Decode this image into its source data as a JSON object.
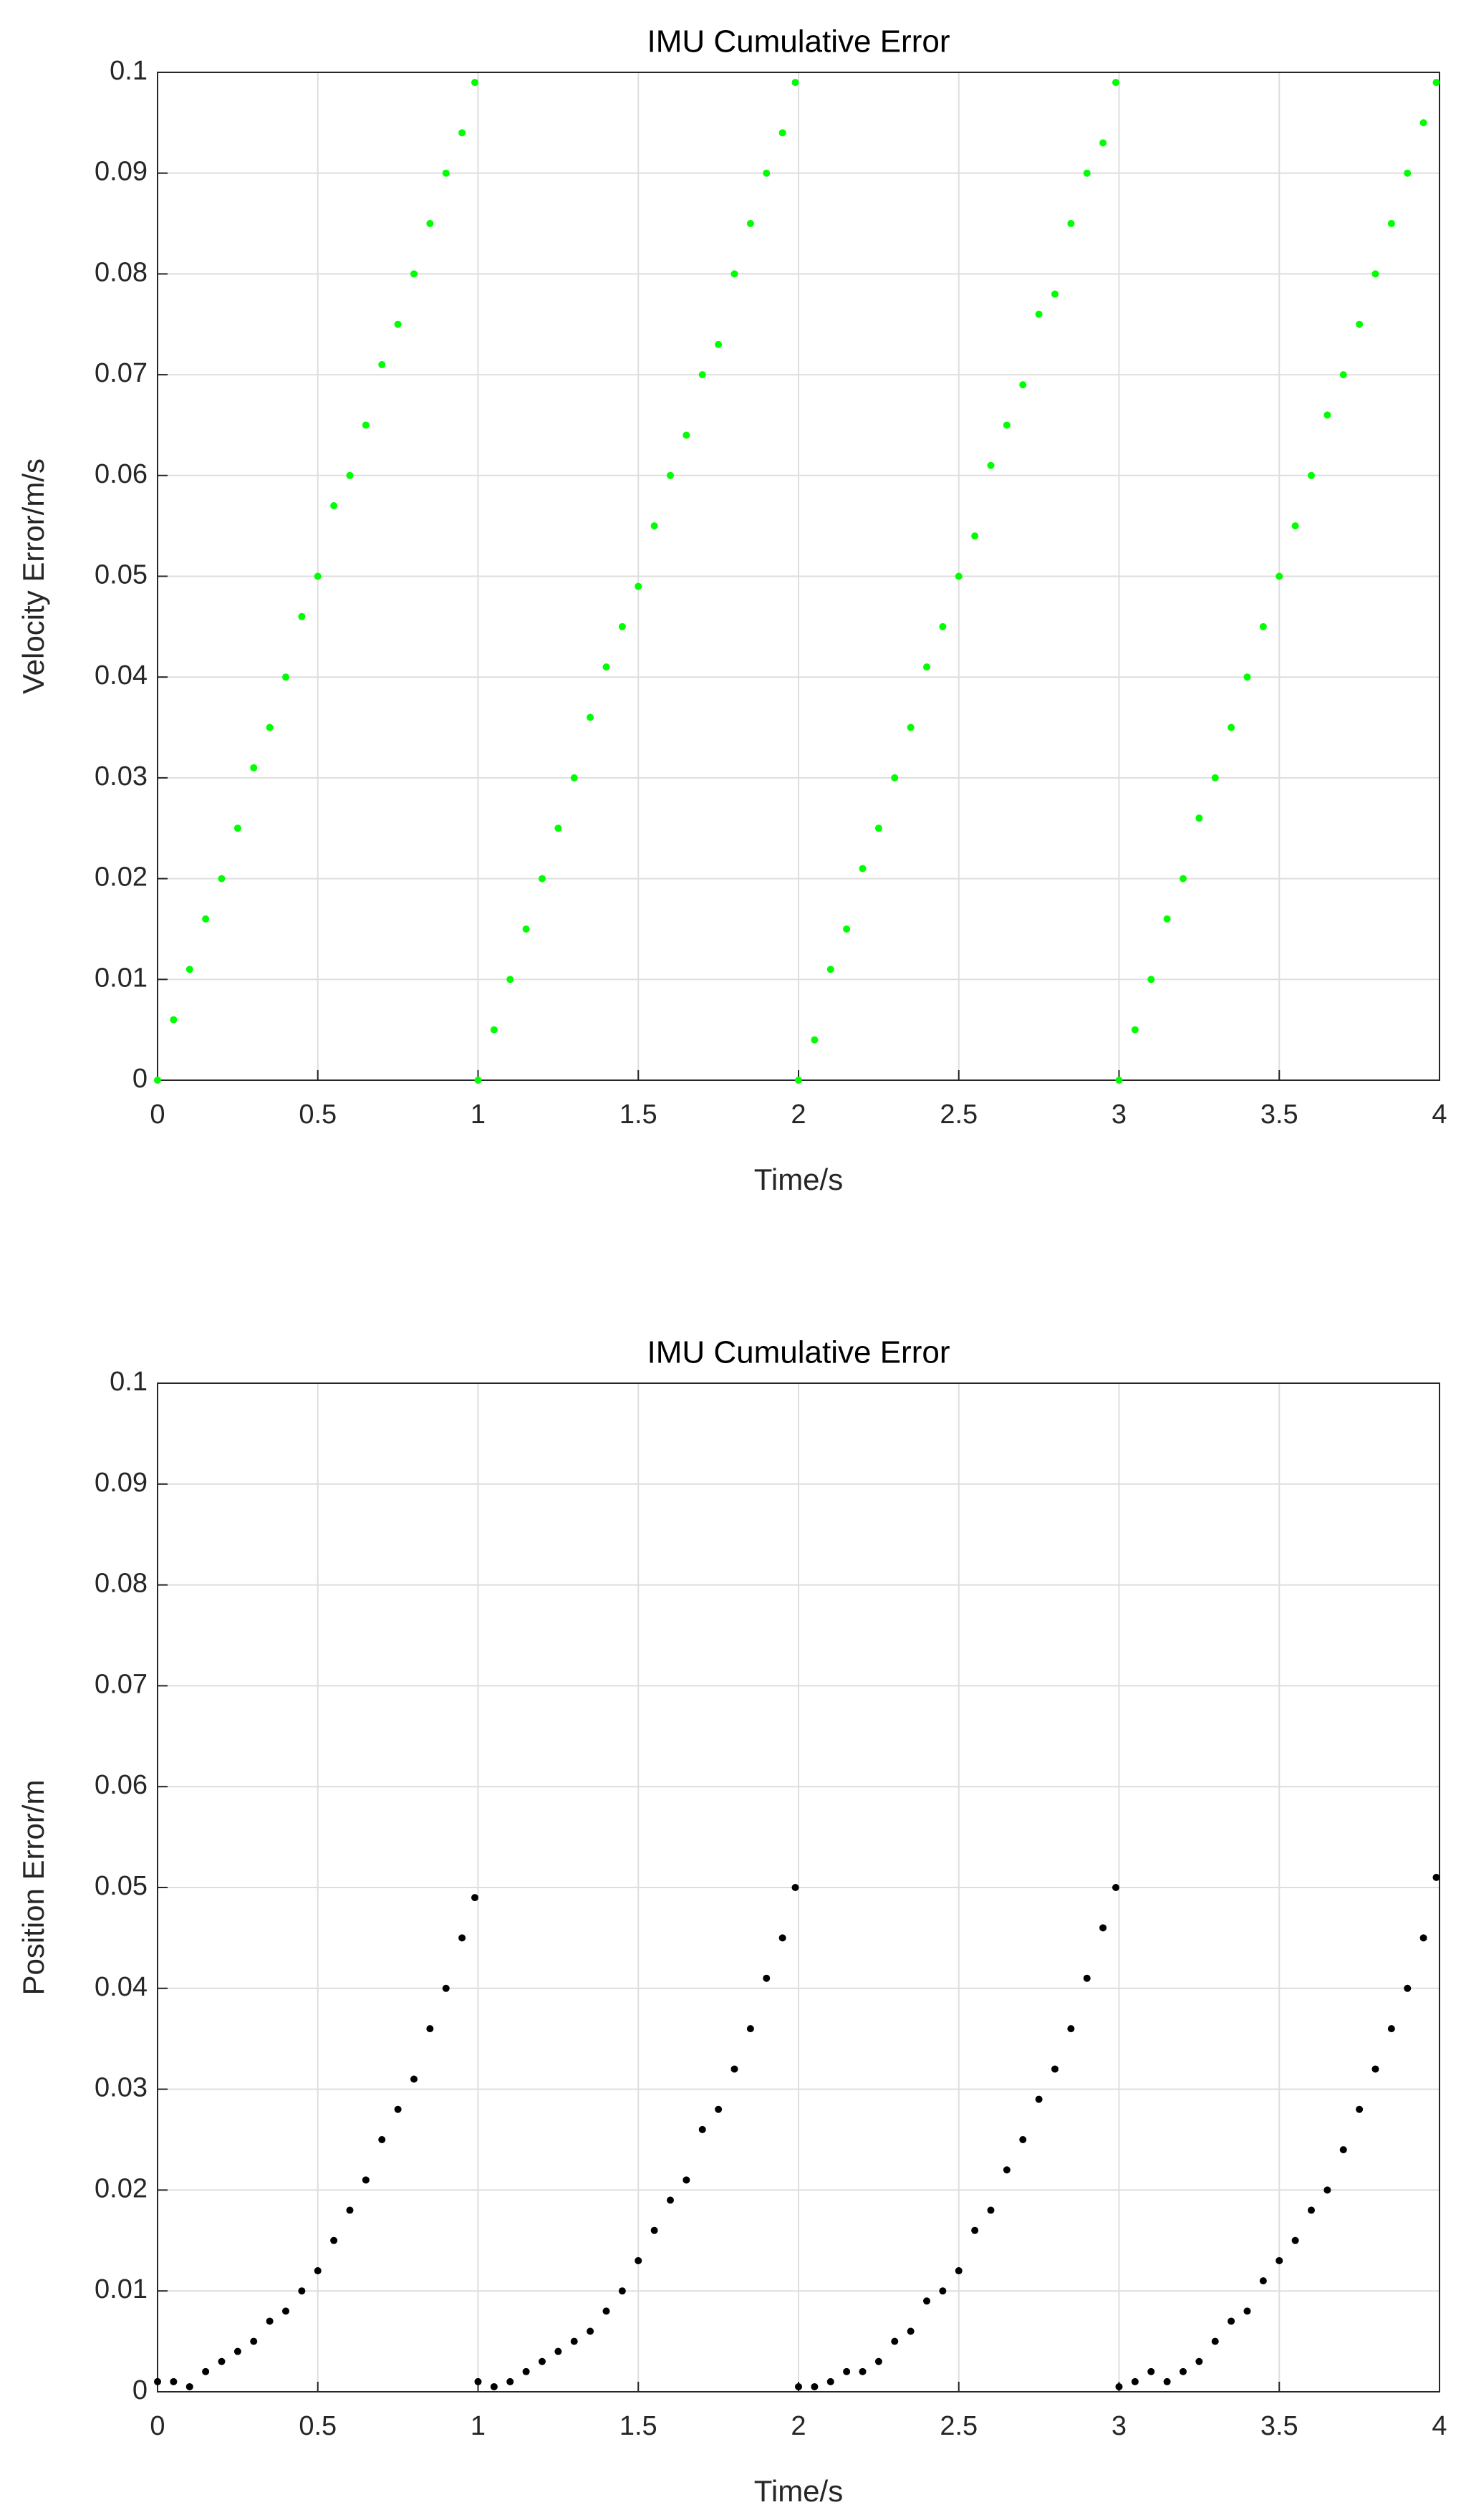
{
  "chart_data": [
    {
      "type": "scatter",
      "title": "IMU Cumulative Error",
      "xlabel": "Time/s",
      "ylabel": "Velocity Error/m/s",
      "color": "#00ff00",
      "xlim": [
        0,
        4
      ],
      "ylim": [
        0,
        0.1
      ],
      "xticks": [
        0,
        0.5,
        1,
        1.5,
        2,
        2.5,
        3,
        3.5,
        4
      ],
      "yticks": [
        0,
        0.01,
        0.02,
        0.03,
        0.04,
        0.05,
        0.06,
        0.07,
        0.08,
        0.09,
        0.1
      ],
      "grid": true,
      "x": [
        0,
        0.05,
        0.1,
        0.15,
        0.2,
        0.25,
        0.3,
        0.35,
        0.4,
        0.45,
        0.5,
        0.55,
        0.6,
        0.65,
        0.7,
        0.75,
        0.8,
        0.85,
        0.9,
        0.95,
        0.99,
        1,
        1.05,
        1.1,
        1.15,
        1.2,
        1.25,
        1.3,
        1.35,
        1.4,
        1.45,
        1.5,
        1.55,
        1.6,
        1.65,
        1.7,
        1.75,
        1.8,
        1.85,
        1.9,
        1.95,
        1.99,
        2,
        2.05,
        2.1,
        2.15,
        2.2,
        2.25,
        2.3,
        2.35,
        2.4,
        2.45,
        2.5,
        2.55,
        2.6,
        2.65,
        2.7,
        2.75,
        2.8,
        2.85,
        2.9,
        2.95,
        2.99,
        3,
        3.05,
        3.1,
        3.15,
        3.2,
        3.25,
        3.3,
        3.35,
        3.4,
        3.45,
        3.5,
        3.55,
        3.6,
        3.65,
        3.7,
        3.75,
        3.8,
        3.85,
        3.9,
        3.95,
        3.99
      ],
      "values": [
        0,
        0.006,
        0.011,
        0.016,
        0.02,
        0.025,
        0.031,
        0.035,
        0.04,
        0.046,
        0.05,
        0.057,
        0.06,
        0.065,
        0.071,
        0.075,
        0.08,
        0.085,
        0.09,
        0.094,
        0.099,
        0,
        0.005,
        0.01,
        0.015,
        0.02,
        0.025,
        0.03,
        0.036,
        0.041,
        0.045,
        0.049,
        0.055,
        0.06,
        0.064,
        0.07,
        0.073,
        0.08,
        0.085,
        0.09,
        0.094,
        0.099,
        0,
        0.004,
        0.011,
        0.015,
        0.021,
        0.025,
        0.03,
        0.035,
        0.041,
        0.045,
        0.05,
        0.054,
        0.061,
        0.065,
        0.069,
        0.076,
        0.078,
        0.085,
        0.09,
        0.093,
        0.099,
        0,
        0.005,
        0.01,
        0.016,
        0.02,
        0.026,
        0.03,
        0.035,
        0.04,
        0.045,
        0.05,
        0.055,
        0.06,
        0.066,
        0.07,
        0.075,
        0.08,
        0.085,
        0.09,
        0.095,
        0.099
      ]
    },
    {
      "type": "scatter",
      "title": "IMU Cumulative Error",
      "xlabel": "Time/s",
      "ylabel": "Position Error/m",
      "color": "#000000",
      "xlim": [
        0,
        4
      ],
      "ylim": [
        0,
        0.1
      ],
      "xticks": [
        0,
        0.5,
        1,
        1.5,
        2,
        2.5,
        3,
        3.5,
        4
      ],
      "yticks": [
        0,
        0.01,
        0.02,
        0.03,
        0.04,
        0.05,
        0.06,
        0.07,
        0.08,
        0.09,
        0.1
      ],
      "grid": true,
      "x": [
        0,
        0.05,
        0.1,
        0.15,
        0.2,
        0.25,
        0.3,
        0.35,
        0.4,
        0.45,
        0.5,
        0.55,
        0.6,
        0.65,
        0.7,
        0.75,
        0.8,
        0.85,
        0.9,
        0.95,
        0.99,
        1,
        1.05,
        1.1,
        1.15,
        1.2,
        1.25,
        1.3,
        1.35,
        1.4,
        1.45,
        1.5,
        1.55,
        1.6,
        1.65,
        1.7,
        1.75,
        1.8,
        1.85,
        1.9,
        1.95,
        1.99,
        2,
        2.05,
        2.1,
        2.15,
        2.2,
        2.25,
        2.3,
        2.35,
        2.4,
        2.45,
        2.5,
        2.55,
        2.6,
        2.65,
        2.7,
        2.75,
        2.8,
        2.85,
        2.9,
        2.95,
        2.99,
        3,
        3.05,
        3.1,
        3.15,
        3.2,
        3.25,
        3.3,
        3.35,
        3.4,
        3.45,
        3.5,
        3.55,
        3.6,
        3.65,
        3.7,
        3.75,
        3.8,
        3.85,
        3.9,
        3.95,
        3.99
      ],
      "values": [
        0.001,
        0.001,
        0.0005,
        0.002,
        0.003,
        0.004,
        0.005,
        0.007,
        0.008,
        0.01,
        0.012,
        0.015,
        0.018,
        0.021,
        0.025,
        0.028,
        0.031,
        0.036,
        0.04,
        0.045,
        0.049,
        0.001,
        0.0005,
        0.001,
        0.002,
        0.003,
        0.004,
        0.005,
        0.006,
        0.008,
        0.01,
        0.013,
        0.016,
        0.019,
        0.021,
        0.026,
        0.028,
        0.032,
        0.036,
        0.041,
        0.045,
        0.05,
        0.0005,
        0.0005,
        0.001,
        0.002,
        0.002,
        0.003,
        0.005,
        0.006,
        0.009,
        0.01,
        0.012,
        0.016,
        0.018,
        0.022,
        0.025,
        0.029,
        0.032,
        0.036,
        0.041,
        0.046,
        0.05,
        0.0005,
        0.001,
        0.002,
        0.001,
        0.002,
        0.003,
        0.005,
        0.007,
        0.008,
        0.011,
        0.013,
        0.015,
        0.018,
        0.02,
        0.024,
        0.028,
        0.032,
        0.036,
        0.04,
        0.045,
        0.051
      ]
    }
  ]
}
